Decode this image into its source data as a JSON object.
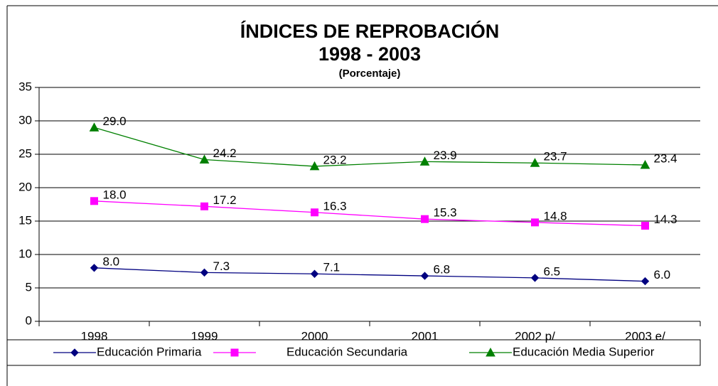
{
  "chart_data": {
    "type": "line",
    "title": "ÍNDICES DE REPROBACIÓN",
    "subtitle": "1998 - 2003",
    "unit_label": "(Porcentaje)",
    "categories": [
      "1998",
      "1999",
      "2000",
      "2001",
      "2002 p/",
      "2003 e/"
    ],
    "series": [
      {
        "name": "Educación Primaria",
        "color": "#000080",
        "marker": "diamond",
        "values": [
          8.0,
          7.3,
          7.1,
          6.8,
          6.5,
          6.0
        ],
        "value_labels": [
          "8.0",
          "7.3",
          "7.1",
          "6.8",
          "6.5",
          "6.0"
        ]
      },
      {
        "name": "Educación Secundaria",
        "color": "#ff00ff",
        "marker": "square",
        "values": [
          18.0,
          17.2,
          16.3,
          15.3,
          14.8,
          14.3
        ],
        "value_labels": [
          "18.0",
          "17.2",
          "16.3",
          "15.3",
          "14.8",
          "14.3"
        ]
      },
      {
        "name": "Educación Media Superior",
        "color": "#008000",
        "marker": "triangle",
        "values": [
          29.0,
          24.2,
          23.2,
          23.9,
          23.7,
          23.4
        ],
        "value_labels": [
          "29.0",
          "24.2",
          "23.2",
          "23.9",
          "23.7",
          "23.4"
        ]
      }
    ],
    "ylim": [
      0,
      35
    ],
    "yticks": [
      0,
      5,
      10,
      15,
      20,
      25,
      30,
      35
    ],
    "grid": true,
    "legend": "bottom"
  }
}
